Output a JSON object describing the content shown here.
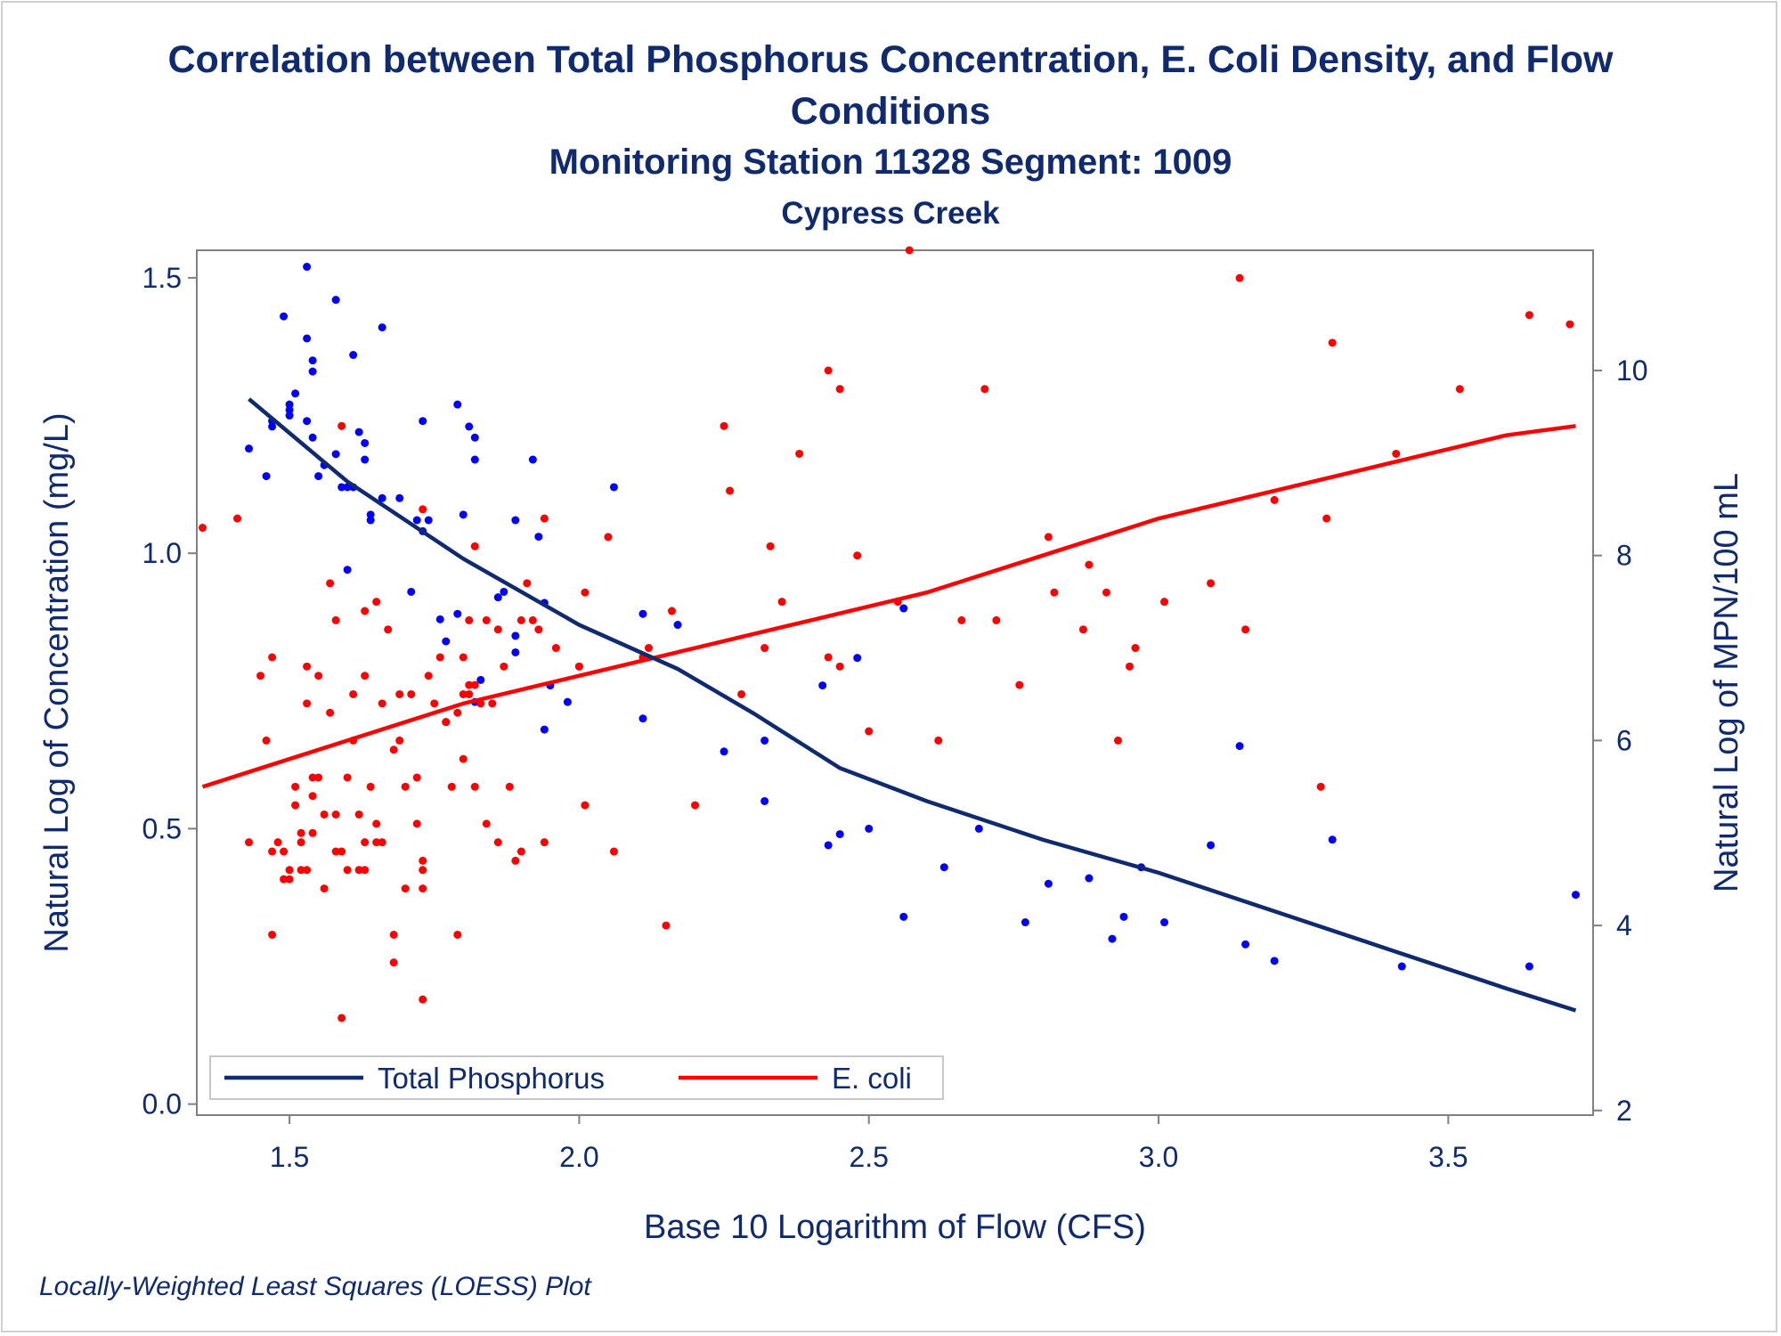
{
  "title_line1": "Correlation between Total Phosphorus Concentration, E. Coli Density, and Flow",
  "title_line2": "Conditions",
  "subtitle": "Monitoring Station 11328 Segment: 1009",
  "subtitle2": "Cypress Creek",
  "footnote": "Locally-Weighted Least Squares (LOESS) Plot",
  "colors": {
    "text": "#0f2a6e",
    "phosphorus": "#0f2a6e",
    "phosphorus_points": "#0000ff",
    "ecoli": "#ff0000",
    "axis": "#808080"
  },
  "chart_data": {
    "type": "scatter",
    "xlabel": "Base 10 Logarithm of Flow (CFS)",
    "ylabel": "Natural Log of Concentration (mg/L)",
    "y2label": "Natural Log of MPN/100 mL",
    "xlim": [
      1.34,
      3.75
    ],
    "ylim": [
      -0.02,
      1.55
    ],
    "y2lim": [
      1.95,
      11.3
    ],
    "xticks": [
      "1.5",
      "2.0",
      "2.5",
      "3.0",
      "3.5"
    ],
    "yticks": [
      "0.0",
      "0.5",
      "1.0",
      "1.5"
    ],
    "y2ticks": [
      "2",
      "4",
      "6",
      "8",
      "10"
    ],
    "legend": {
      "position": "bottom-left",
      "entries": [
        "Total Phosphorus",
        "E. coli"
      ]
    },
    "series": [
      {
        "name": "Total Phosphorus",
        "axis": "left",
        "points": [
          [
            1.43,
            1.19
          ],
          [
            1.46,
            1.14
          ],
          [
            1.47,
            1.23
          ],
          [
            1.47,
            1.24
          ],
          [
            1.49,
            1.43
          ],
          [
            1.5,
            1.25
          ],
          [
            1.5,
            1.26
          ],
          [
            1.5,
            1.27
          ],
          [
            1.51,
            1.29
          ],
          [
            1.53,
            1.52
          ],
          [
            1.53,
            1.39
          ],
          [
            1.53,
            1.24
          ],
          [
            1.54,
            1.21
          ],
          [
            1.54,
            1.33
          ],
          [
            1.54,
            1.35
          ],
          [
            1.55,
            1.14
          ],
          [
            1.56,
            1.16
          ],
          [
            1.58,
            1.46
          ],
          [
            1.58,
            1.18
          ],
          [
            1.59,
            1.12
          ],
          [
            1.6,
            1.12
          ],
          [
            1.6,
            0.97
          ],
          [
            1.61,
            1.12
          ],
          [
            1.61,
            1.36
          ],
          [
            1.62,
            1.22
          ],
          [
            1.63,
            1.17
          ],
          [
            1.63,
            1.2
          ],
          [
            1.64,
            1.06
          ],
          [
            1.64,
            1.07
          ],
          [
            1.66,
            1.1
          ],
          [
            1.66,
            1.41
          ],
          [
            1.69,
            1.1
          ],
          [
            1.71,
            0.93
          ],
          [
            1.72,
            1.06
          ],
          [
            1.73,
            1.04
          ],
          [
            1.73,
            1.24
          ],
          [
            1.74,
            1.06
          ],
          [
            1.74,
            0.03
          ],
          [
            1.76,
            0.88
          ],
          [
            1.77,
            0.84
          ],
          [
            1.79,
            0.89
          ],
          [
            1.79,
            1.27
          ],
          [
            1.8,
            1.07
          ],
          [
            1.81,
            1.23
          ],
          [
            1.82,
            0.73
          ],
          [
            1.82,
            1.21
          ],
          [
            1.82,
            1.17
          ],
          [
            1.83,
            0.77
          ],
          [
            1.86,
            0.92
          ],
          [
            1.87,
            0.93
          ],
          [
            1.89,
            0.85
          ],
          [
            1.89,
            0.82
          ],
          [
            1.89,
            1.06
          ],
          [
            1.92,
            1.17
          ],
          [
            1.93,
            1.03
          ],
          [
            1.94,
            0.91
          ],
          [
            1.95,
            0.76
          ],
          [
            1.94,
            0.68
          ],
          [
            1.98,
            0.73
          ],
          [
            2.06,
            1.12
          ],
          [
            2.11,
            0.89
          ],
          [
            2.11,
            0.7
          ],
          [
            2.17,
            0.87
          ],
          [
            2.25,
            0.64
          ],
          [
            2.32,
            0.55
          ],
          [
            2.32,
            0.66
          ],
          [
            2.42,
            0.76
          ],
          [
            2.43,
            0.47
          ],
          [
            2.45,
            0.49
          ],
          [
            2.48,
            0.81
          ],
          [
            2.5,
            0.5
          ],
          [
            2.56,
            0.34
          ],
          [
            2.56,
            0.9
          ],
          [
            2.63,
            0.43
          ],
          [
            2.69,
            0.5
          ],
          [
            2.77,
            0.33
          ],
          [
            2.81,
            0.4
          ],
          [
            2.88,
            0.41
          ],
          [
            2.92,
            0.3
          ],
          [
            2.94,
            0.34
          ],
          [
            2.97,
            0.43
          ],
          [
            3.01,
            0.33
          ],
          [
            3.09,
            0.47
          ],
          [
            3.14,
            0.65
          ],
          [
            3.15,
            0.29
          ],
          [
            3.2,
            0.26
          ],
          [
            3.3,
            0.48
          ],
          [
            3.42,
            0.25
          ],
          [
            3.64,
            0.25
          ],
          [
            3.72,
            0.38
          ]
        ],
        "loess": [
          [
            1.43,
            1.28
          ],
          [
            1.6,
            1.13
          ],
          [
            1.8,
            0.99
          ],
          [
            2.0,
            0.87
          ],
          [
            2.17,
            0.79
          ],
          [
            2.3,
            0.71
          ],
          [
            2.45,
            0.61
          ],
          [
            2.6,
            0.55
          ],
          [
            2.8,
            0.48
          ],
          [
            3.0,
            0.42
          ],
          [
            3.2,
            0.35
          ],
          [
            3.4,
            0.28
          ],
          [
            3.6,
            0.21
          ],
          [
            3.72,
            0.17
          ]
        ]
      },
      {
        "name": "E. coli",
        "axis": "right",
        "points": [
          [
            1.35,
            8.3
          ],
          [
            1.41,
            8.4
          ],
          [
            1.43,
            4.9
          ],
          [
            1.45,
            6.7
          ],
          [
            1.46,
            6.0
          ],
          [
            1.47,
            3.9
          ],
          [
            1.47,
            6.9
          ],
          [
            1.47,
            4.8
          ],
          [
            1.48,
            4.9
          ],
          [
            1.49,
            4.8
          ],
          [
            1.49,
            4.5
          ],
          [
            1.5,
            4.6
          ],
          [
            1.5,
            4.5
          ],
          [
            1.51,
            5.5
          ],
          [
            1.51,
            5.3
          ],
          [
            1.52,
            5.0
          ],
          [
            1.52,
            4.9
          ],
          [
            1.52,
            4.6
          ],
          [
            1.53,
            6.8
          ],
          [
            1.53,
            6.4
          ],
          [
            1.53,
            4.6
          ],
          [
            1.54,
            5.4
          ],
          [
            1.54,
            5.6
          ],
          [
            1.54,
            5.0
          ],
          [
            1.55,
            6.7
          ],
          [
            1.55,
            5.6
          ],
          [
            1.56,
            4.4
          ],
          [
            1.56,
            5.2
          ],
          [
            1.57,
            6.3
          ],
          [
            1.57,
            7.7
          ],
          [
            1.58,
            7.3
          ],
          [
            1.58,
            5.2
          ],
          [
            1.58,
            4.8
          ],
          [
            1.59,
            9.4
          ],
          [
            1.59,
            3.0
          ],
          [
            1.59,
            4.8
          ],
          [
            1.6,
            5.6
          ],
          [
            1.6,
            4.6
          ],
          [
            1.61,
            6.5
          ],
          [
            1.61,
            6.0
          ],
          [
            1.62,
            4.6
          ],
          [
            1.62,
            5.2
          ],
          [
            1.63,
            7.4
          ],
          [
            1.63,
            4.6
          ],
          [
            1.63,
            4.9
          ],
          [
            1.63,
            6.7
          ],
          [
            1.64,
            5.5
          ],
          [
            1.65,
            7.5
          ],
          [
            1.65,
            5.1
          ],
          [
            1.65,
            4.9
          ],
          [
            1.66,
            4.9
          ],
          [
            1.66,
            6.4
          ],
          [
            1.67,
            7.2
          ],
          [
            1.68,
            3.9
          ],
          [
            1.68,
            3.6
          ],
          [
            1.68,
            5.9
          ],
          [
            1.69,
            6.0
          ],
          [
            1.69,
            6.5
          ],
          [
            1.7,
            5.5
          ],
          [
            1.7,
            4.4
          ],
          [
            1.71,
            6.5
          ],
          [
            1.72,
            5.1
          ],
          [
            1.72,
            5.6
          ],
          [
            1.73,
            4.6
          ],
          [
            1.73,
            3.2
          ],
          [
            1.73,
            4.7
          ],
          [
            1.73,
            8.5
          ],
          [
            1.73,
            4.4
          ],
          [
            1.74,
            6.7
          ],
          [
            1.75,
            6.4
          ],
          [
            1.76,
            6.9
          ],
          [
            1.77,
            6.2
          ],
          [
            1.77,
            6.2
          ],
          [
            1.78,
            5.5
          ],
          [
            1.79,
            3.9
          ],
          [
            1.79,
            6.3
          ],
          [
            1.8,
            5.8
          ],
          [
            1.8,
            6.5
          ],
          [
            1.8,
            6.9
          ],
          [
            1.81,
            6.5
          ],
          [
            1.81,
            7.3
          ],
          [
            1.81,
            6.6
          ],
          [
            1.82,
            8.1
          ],
          [
            1.82,
            6.6
          ],
          [
            1.82,
            5.5
          ],
          [
            1.83,
            6.4
          ],
          [
            1.84,
            7.3
          ],
          [
            1.84,
            5.1
          ],
          [
            1.85,
            6.4
          ],
          [
            1.86,
            4.9
          ],
          [
            1.86,
            7.2
          ],
          [
            1.87,
            6.8
          ],
          [
            1.88,
            5.5
          ],
          [
            1.89,
            4.7
          ],
          [
            1.9,
            7.3
          ],
          [
            1.9,
            4.8
          ],
          [
            1.91,
            7.7
          ],
          [
            1.92,
            7.3
          ],
          [
            1.93,
            7.2
          ],
          [
            1.94,
            4.9
          ],
          [
            1.94,
            8.4
          ],
          [
            1.96,
            7.0
          ],
          [
            2.0,
            6.8
          ],
          [
            2.01,
            5.3
          ],
          [
            2.01,
            7.6
          ],
          [
            2.0,
            6.8
          ],
          [
            2.05,
            8.2
          ],
          [
            2.06,
            4.8
          ],
          [
            2.11,
            6.9
          ],
          [
            2.12,
            7.0
          ],
          [
            2.15,
            4.0
          ],
          [
            2.16,
            7.4
          ],
          [
            2.2,
            5.3
          ],
          [
            2.25,
            9.4
          ],
          [
            2.26,
            8.7
          ],
          [
            2.28,
            6.5
          ],
          [
            2.32,
            7.0
          ],
          [
            2.33,
            8.1
          ],
          [
            2.35,
            7.5
          ],
          [
            2.38,
            9.1
          ],
          [
            2.43,
            10.0
          ],
          [
            2.43,
            6.9
          ],
          [
            2.45,
            6.8
          ],
          [
            2.45,
            9.8
          ],
          [
            2.48,
            8.0
          ],
          [
            2.5,
            6.1
          ],
          [
            2.55,
            7.5
          ],
          [
            2.57,
            11.3
          ],
          [
            2.62,
            6.0
          ],
          [
            2.66,
            7.3
          ],
          [
            2.7,
            9.8
          ],
          [
            2.72,
            7.3
          ],
          [
            2.76,
            6.6
          ],
          [
            2.81,
            8.2
          ],
          [
            2.82,
            7.6
          ],
          [
            2.87,
            7.2
          ],
          [
            2.88,
            7.9
          ],
          [
            2.91,
            7.6
          ],
          [
            2.93,
            6.0
          ],
          [
            2.95,
            6.8
          ],
          [
            2.96,
            7.0
          ],
          [
            3.01,
            7.5
          ],
          [
            3.09,
            7.7
          ],
          [
            3.14,
            11.0
          ],
          [
            3.15,
            7.2
          ],
          [
            3.2,
            8.6
          ],
          [
            3.28,
            5.5
          ],
          [
            3.29,
            8.4
          ],
          [
            3.3,
            10.3
          ],
          [
            3.41,
            9.1
          ],
          [
            3.52,
            9.8
          ],
          [
            3.64,
            10.6
          ],
          [
            3.71,
            10.5
          ]
        ],
        "loess": [
          [
            1.35,
            5.5
          ],
          [
            1.6,
            6.0
          ],
          [
            1.8,
            6.4
          ],
          [
            2.0,
            6.7
          ],
          [
            2.2,
            7.0
          ],
          [
            2.4,
            7.3
          ],
          [
            2.6,
            7.6
          ],
          [
            2.8,
            8.0
          ],
          [
            3.0,
            8.4
          ],
          [
            3.2,
            8.7
          ],
          [
            3.4,
            9.0
          ],
          [
            3.6,
            9.3
          ],
          [
            3.72,
            9.4
          ]
        ]
      }
    ]
  }
}
